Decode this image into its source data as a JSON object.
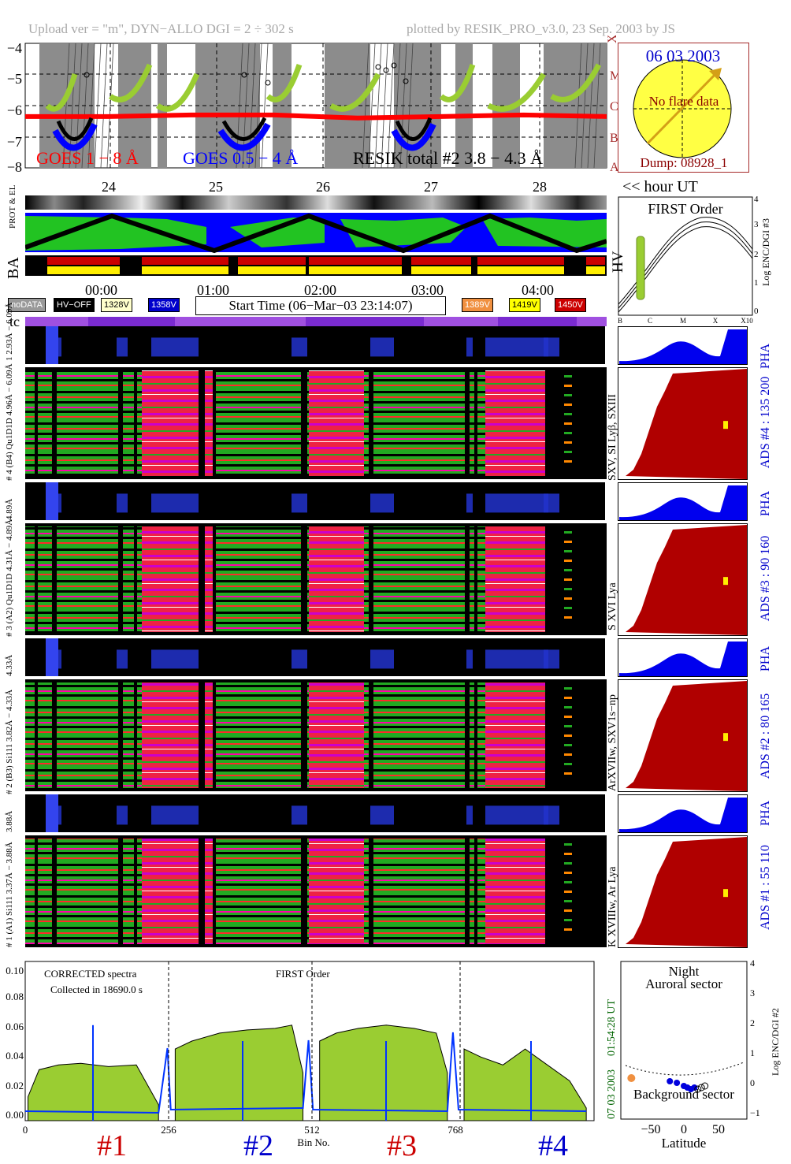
{
  "header": {
    "left": "Upload ver = \"m\", DYN−ALLO DGI =   2 ÷ 302 s",
    "right": "plotted by RESIK_PRO_v3.0, 23 Sep. 2003 by JS"
  },
  "goes_panel": {
    "y_ticks": [
      "−4",
      "−5",
      "−6",
      "−7",
      "−8"
    ],
    "class_labels": [
      "X",
      "M",
      "C",
      "B",
      "A"
    ],
    "legend": {
      "goes_long": "GOES 1 − 8 Å",
      "goes_short": "GOES 0.5 − 4 Å",
      "resik": "RESIK total #2  3.8 − 4.3 Å"
    },
    "day_ticks": [
      "24",
      "25",
      "26",
      "27",
      "28"
    ],
    "hour_ut": "<< hour UT",
    "colors": {
      "goes_long": "#ff0000",
      "goes_short": "#0000ff",
      "resik": "#9acd32"
    }
  },
  "sun_box": {
    "date": "06 03 2003",
    "no_flare": "No flare data",
    "dump": "Dump: 08928_1"
  },
  "side_labels": {
    "prot_el": "PROT & EL",
    "ba": "BA",
    "hv": "HV",
    "tc": "tc"
  },
  "time_ticks": [
    "00:00",
    "01:00",
    "02:00",
    "03:00",
    "04:00"
  ],
  "legend_boxes": {
    "nodata": "noDATA",
    "hvoff": "HV−OFF",
    "v1328": "1328V",
    "v1358": "1358V",
    "start": "Start Time (06−Mar−03 23:14:07)",
    "v1389": "1389V",
    "v1419": "1419V",
    "v1450": "1450V"
  },
  "hv_plot": {
    "title": "FIRST Order",
    "xticks": [
      "B",
      "C",
      "M",
      "X",
      "X10"
    ],
    "yticks": [
      "4",
      "3",
      "2",
      "1",
      "0"
    ],
    "ylabel": "Log ENC/DGI #3"
  },
  "channels": [
    {
      "pha_label": "1 2.93Å − 6.09Å",
      "spec_label": "# 4 (B4) Qu1D1D 4.96Å − 6.09Å",
      "lines": "SXV, SI Lyβ, SXIII",
      "ads": "ADS #4 :  135 200"
    },
    {
      "pha_label": "4.89Å",
      "spec_label": "# 3 (A2) Qu1D1D 4.31Å − 4.89Å",
      "lines": "S XVI Lya",
      "ads": "ADS #3 :   90 160"
    },
    {
      "pha_label": "4.33Å",
      "spec_label": "# 2 (B3) Si111 3.82Å − 4.33Å",
      "lines": "ArXVIIw, SXV1s−np",
      "ads": "ADS #2 :   80 165"
    },
    {
      "pha_label": "3.88Å",
      "spec_label": "# 1 (A1) Si111 3.37Å − 3.88Å",
      "lines": "K XVIIIw, Ar Lya",
      "ads": "ADS #1 :   55 110"
    }
  ],
  "pha": "PHA",
  "bottom": {
    "corrected": "CORRECTED spectra",
    "collected": "Collected in 18690.0 s",
    "first_order": "FIRST Order",
    "time_ut": "01:54:28 UT",
    "date_side": "07 03 2003",
    "x_ticks": [
      "0",
      "256",
      "512",
      "768"
    ],
    "x_label": "Bin No.",
    "y_ticks": [
      "0.10",
      "0.08",
      "0.06",
      "0.04",
      "0.02",
      "0.00"
    ],
    "section_labels": [
      "#1",
      "#2",
      "#3",
      "#4"
    ],
    "section_colors": [
      "#cc0000",
      "#0000cc",
      "#cc0000",
      "#0000cc"
    ]
  },
  "lat_plot": {
    "night": "Night",
    "auroral": "Auroral sector",
    "background": "Background sector",
    "xticks": [
      "−50",
      "0",
      "50"
    ],
    "xlabel": "Latitude",
    "yticks": [
      "4",
      "3",
      "2",
      "1",
      "0",
      "−1"
    ],
    "ylabel": "Log ENC/DGI #2"
  },
  "chart_data": [
    {
      "type": "line",
      "ylim": [
        -8,
        -4
      ],
      "series": [
        {
          "name": "GOES 1 − 8 Å",
          "values": [
            -6.35,
            -6.35,
            -6.3,
            -6.3,
            -6.4,
            -6.35,
            -6.3,
            -6.35
          ]
        },
        {
          "name": "GOES 0.5 − 4 Å",
          "values": [
            -7.2,
            -7.3,
            -7.5,
            -7.2,
            -7.4,
            -7.3,
            -7.1,
            -7.2
          ]
        }
      ]
    },
    {
      "type": "area",
      "xlabel": "Bin No.",
      "xlim": [
        0,
        1024
      ],
      "ylim": [
        0,
        0.1
      ],
      "series": [
        {
          "name": "#1",
          "x": [
            5,
            25,
            60,
            100,
            150,
            200,
            240
          ],
          "values": [
            0.015,
            0.032,
            0.035,
            0.036,
            0.034,
            0.035,
            0.01
          ]
        },
        {
          "name": "#2",
          "x": [
            270,
            300,
            350,
            400,
            450,
            480,
            500
          ],
          "values": [
            0.045,
            0.05,
            0.055,
            0.057,
            0.058,
            0.06,
            0.03
          ]
        },
        {
          "name": "#3",
          "x": [
            530,
            560,
            600,
            650,
            700,
            740,
            760
          ],
          "values": [
            0.05,
            0.055,
            0.058,
            0.06,
            0.058,
            0.055,
            0.03
          ]
        },
        {
          "name": "#4",
          "x": [
            790,
            820,
            860,
            900,
            940,
            980,
            1010
          ],
          "values": [
            0.045,
            0.04,
            0.035,
            0.045,
            0.035,
            0.025,
            0.008
          ]
        }
      ]
    },
    {
      "type": "scatter",
      "xlabel": "Latitude",
      "ylabel": "Log ENC/DGI #2",
      "xlim": [
        -90,
        90
      ],
      "ylim": [
        -1,
        4
      ],
      "x": [
        -75,
        -20,
        -10,
        0,
        5,
        10,
        15,
        20,
        25,
        30
      ],
      "values": [
        0.3,
        0.2,
        0.15,
        0.05,
        0.0,
        -0.05,
        0.0,
        -0.05,
        0.0,
        0.05
      ]
    }
  ]
}
